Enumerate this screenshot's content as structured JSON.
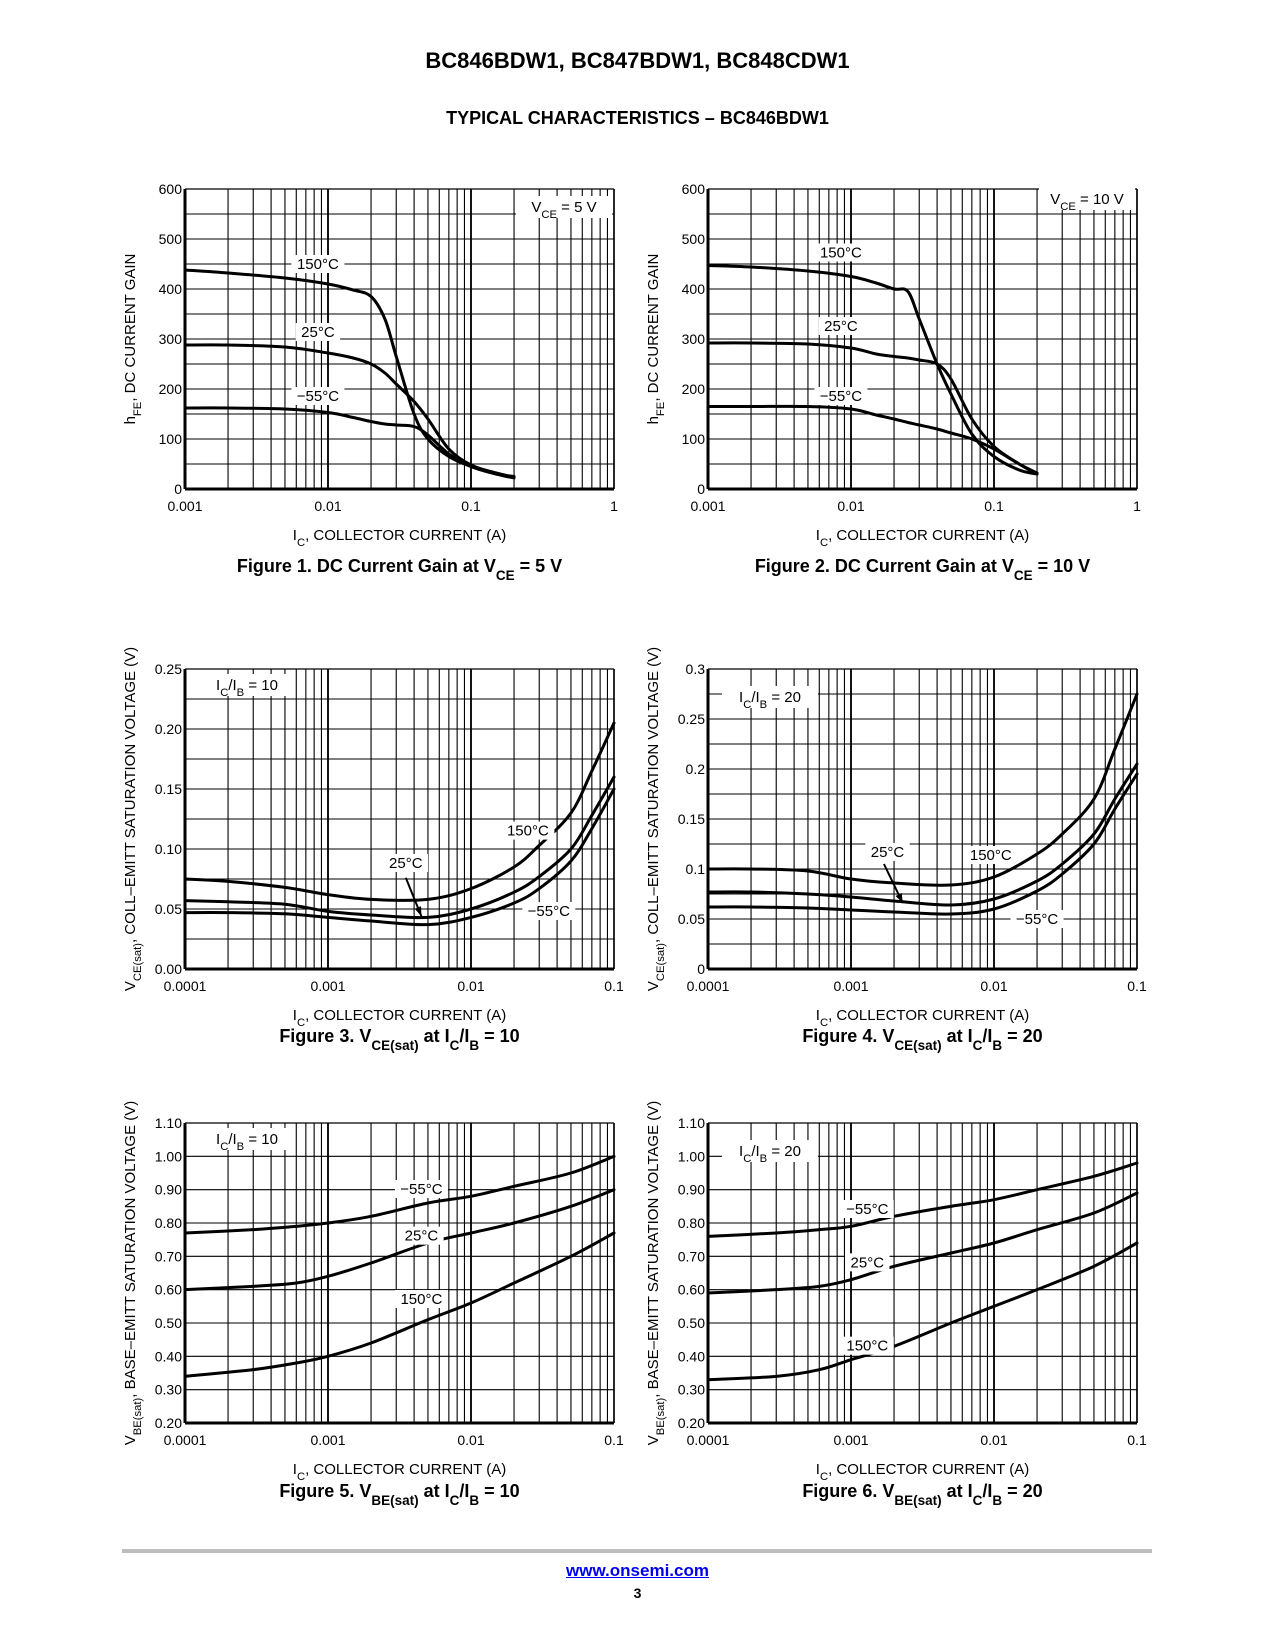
{
  "document": {
    "title": "BC846BDW1, BC847BDW1, BC848CDW1",
    "section": "TYPICAL CHARACTERISTICS – BC846BDW1"
  },
  "footer": {
    "link": "www.onsemi.com",
    "page": "3",
    "link_color": "#0000ee",
    "rule_color": "#bdbdbd"
  },
  "chart_data": [
    {
      "id": "fig1",
      "type": "line",
      "caption": "Figure 1. DC Current Gain at V",
      "caption_sub": "CE",
      "caption_tail": " = 5 V",
      "annotation": "V",
      "annotation_sub": "CE",
      "annotation_tail": " = 5 V",
      "xscale": "log",
      "xlim": [
        0.001,
        1
      ],
      "ylim": [
        0,
        600
      ],
      "xticks": [
        0.001,
        0.01,
        0.1,
        1
      ],
      "xtick_labels": [
        "0.001",
        "0.01",
        "0.1",
        "1"
      ],
      "yticks": [
        0,
        100,
        200,
        300,
        400,
        500,
        600
      ],
      "ytick_labels": [
        "0",
        "100",
        "200",
        "300",
        "400",
        "500",
        "600"
      ],
      "ygrid_minor": 50,
      "xlabel": "I",
      "xlabel_sub": "C",
      "xlabel_tail": ", COLLECTOR CURRENT (A)",
      "ylabel": "h",
      "ylabel_sub": "FE",
      "ylabel_tail": ", DC CURRENT GAIN",
      "series": [
        {
          "name": "150°C",
          "x": [
            0.001,
            0.002,
            0.005,
            0.01,
            0.015,
            0.02,
            0.025,
            0.03,
            0.04,
            0.05,
            0.07,
            0.1,
            0.15,
            0.2
          ],
          "y": [
            438,
            432,
            422,
            410,
            398,
            385,
            340,
            265,
            150,
            100,
            65,
            45,
            30,
            25
          ]
        },
        {
          "name": "25°C",
          "x": [
            0.001,
            0.002,
            0.005,
            0.01,
            0.015,
            0.02,
            0.025,
            0.03,
            0.04,
            0.05,
            0.07,
            0.1,
            0.15,
            0.2
          ],
          "y": [
            288,
            288,
            284,
            272,
            262,
            250,
            232,
            210,
            175,
            140,
            80,
            48,
            32,
            24
          ]
        },
        {
          "name": "−55°C",
          "x": [
            0.001,
            0.002,
            0.005,
            0.01,
            0.015,
            0.02,
            0.025,
            0.03,
            0.04,
            0.05,
            0.07,
            0.1,
            0.15,
            0.2
          ],
          "y": [
            162,
            162,
            160,
            153,
            143,
            135,
            130,
            128,
            125,
            108,
            70,
            45,
            30,
            22
          ]
        }
      ],
      "labels": [
        {
          "text": "150°C",
          "x": 0.0085,
          "y": 442
        },
        {
          "text": "25°C",
          "x": 0.0085,
          "y": 306
        },
        {
          "text": "−55°C",
          "x": 0.0085,
          "y": 178
        }
      ]
    },
    {
      "id": "fig2",
      "type": "line",
      "caption": "Figure 2. DC Current Gain at V",
      "caption_sub": "CE",
      "caption_tail": " = 10 V",
      "annotation": "V",
      "annotation_sub": "CE",
      "annotation_tail": " = 10 V",
      "xscale": "log",
      "xlim": [
        0.001,
        1
      ],
      "ylim": [
        0,
        600
      ],
      "xticks": [
        0.001,
        0.01,
        0.1,
        1
      ],
      "xtick_labels": [
        "0.001",
        "0.01",
        "0.1",
        "1"
      ],
      "yticks": [
        0,
        100,
        200,
        300,
        400,
        500,
        600
      ],
      "ytick_labels": [
        "0",
        "100",
        "200",
        "300",
        "400",
        "500",
        "600"
      ],
      "ygrid_minor": 50,
      "xlabel": "I",
      "xlabel_sub": "C",
      "xlabel_tail": ", COLLECTOR CURRENT (A)",
      "ylabel": "h",
      "ylabel_sub": "FE",
      "ylabel_tail": ", DC CURRENT GAIN",
      "series": [
        {
          "name": "150°C",
          "x": [
            0.001,
            0.002,
            0.005,
            0.01,
            0.015,
            0.02,
            0.025,
            0.03,
            0.04,
            0.05,
            0.07,
            0.1,
            0.15,
            0.2
          ],
          "y": [
            447,
            444,
            436,
            425,
            412,
            400,
            395,
            340,
            250,
            190,
            110,
            65,
            38,
            30
          ]
        },
        {
          "name": "25°C",
          "x": [
            0.001,
            0.002,
            0.005,
            0.01,
            0.015,
            0.02,
            0.025,
            0.03,
            0.04,
            0.05,
            0.07,
            0.1,
            0.15,
            0.2
          ],
          "y": [
            292,
            292,
            290,
            282,
            270,
            265,
            262,
            258,
            250,
            220,
            140,
            85,
            50,
            30
          ]
        },
        {
          "name": "−55°C",
          "x": [
            0.001,
            0.002,
            0.005,
            0.01,
            0.015,
            0.02,
            0.025,
            0.03,
            0.04,
            0.05,
            0.07,
            0.1,
            0.15,
            0.2
          ],
          "y": [
            165,
            165,
            165,
            160,
            148,
            140,
            133,
            128,
            120,
            112,
            100,
            80,
            50,
            32
          ]
        }
      ],
      "labels": [
        {
          "text": "150°C",
          "x": 0.0085,
          "y": 465
        },
        {
          "text": "25°C",
          "x": 0.0085,
          "y": 318
        },
        {
          "text": "−55°C",
          "x": 0.0085,
          "y": 178
        }
      ]
    },
    {
      "id": "fig3",
      "type": "line",
      "caption": "Figure 3. V",
      "caption_sub": "CE(sat)",
      "caption_tail": " at I",
      "caption_sub2": "C",
      "caption_tail2": "/I",
      "caption_sub3": "B",
      "caption_tail3": " = 10",
      "annotation": "I",
      "annotation_sub": "C",
      "annotation_tail": "/I",
      "annotation_sub2": "B",
      "annotation_tail2": " = 10",
      "xscale": "log",
      "xlim": [
        0.0001,
        0.1
      ],
      "ylim": [
        0,
        0.25
      ],
      "xticks": [
        0.0001,
        0.001,
        0.01,
        0.1
      ],
      "xtick_labels": [
        "0.0001",
        "0.001",
        "0.01",
        "0.1"
      ],
      "yticks": [
        0,
        0.05,
        0.1,
        0.15,
        0.2,
        0.25
      ],
      "ytick_labels": [
        "0.00",
        "0.05",
        "0.10",
        "0.15",
        "0.20",
        "0.25"
      ],
      "ygrid_minor": 0.025,
      "xlabel": "I",
      "xlabel_sub": "C",
      "xlabel_tail": ", COLLECTOR CURRENT (A)",
      "ylabel": "V",
      "ylabel_sub": "CE(sat)",
      "ylabel_tail": ", COLL–EMITT SATURATION VOLTAGE (V)",
      "series": [
        {
          "name": "150°C",
          "x": [
            0.0001,
            0.0002,
            0.0005,
            0.001,
            0.002,
            0.005,
            0.01,
            0.02,
            0.03,
            0.05,
            0.07,
            0.1
          ],
          "y": [
            0.075,
            0.073,
            0.068,
            0.062,
            0.058,
            0.058,
            0.067,
            0.085,
            0.103,
            0.13,
            0.165,
            0.205
          ]
        },
        {
          "name": "25°C",
          "x": [
            0.0001,
            0.0002,
            0.0005,
            0.001,
            0.002,
            0.005,
            0.01,
            0.02,
            0.03,
            0.05,
            0.07,
            0.1
          ],
          "y": [
            0.057,
            0.056,
            0.054,
            0.048,
            0.045,
            0.043,
            0.05,
            0.064,
            0.077,
            0.1,
            0.128,
            0.16
          ]
        },
        {
          "name": "−55°C",
          "x": [
            0.0001,
            0.0002,
            0.0005,
            0.001,
            0.002,
            0.005,
            0.01,
            0.02,
            0.03,
            0.05,
            0.07,
            0.1
          ],
          "y": [
            0.047,
            0.047,
            0.046,
            0.043,
            0.04,
            0.037,
            0.043,
            0.055,
            0.067,
            0.09,
            0.117,
            0.15
          ]
        }
      ],
      "labels": [
        {
          "text": "150°C",
          "x": 0.025,
          "y": 0.112
        },
        {
          "text": "25°C",
          "x": 0.0035,
          "y": 0.085
        },
        {
          "text": "−55°C",
          "x": 0.035,
          "y": 0.045
        }
      ],
      "arrow": {
        "from": [
          0.0035,
          0.076
        ],
        "to": [
          0.0045,
          0.044
        ]
      }
    },
    {
      "id": "fig4",
      "type": "line",
      "caption": "Figure 4. V",
      "caption_sub": "CE(sat)",
      "caption_tail": " at I",
      "caption_sub2": "C",
      "caption_tail2": "/I",
      "caption_sub3": "B",
      "caption_tail3": " = 20",
      "annotation": "I",
      "annotation_sub": "C",
      "annotation_tail": "/I",
      "annotation_sub2": "B",
      "annotation_tail2": " = 20",
      "xscale": "log",
      "xlim": [
        0.0001,
        0.1
      ],
      "ylim": [
        0,
        0.3
      ],
      "xticks": [
        0.0001,
        0.001,
        0.01,
        0.1
      ],
      "xtick_labels": [
        "0.0001",
        "0.001",
        "0.01",
        "0.1"
      ],
      "yticks": [
        0,
        0.05,
        0.1,
        0.15,
        0.2,
        0.25,
        0.3
      ],
      "ytick_labels": [
        "0",
        "0.05",
        "0.1",
        "0.15",
        "0.2",
        "0.25",
        "0.3"
      ],
      "ygrid_minor": 0.025,
      "xlabel": "I",
      "xlabel_sub": "C",
      "xlabel_tail": ", COLLECTOR CURRENT (A)",
      "ylabel": "V",
      "ylabel_sub": "CE(sat)",
      "ylabel_tail": ", COLL–EMITT SATURATION VOLTAGE (V)",
      "series": [
        {
          "name": "150°C",
          "x": [
            0.0001,
            0.0002,
            0.0005,
            0.001,
            0.002,
            0.005,
            0.01,
            0.02,
            0.03,
            0.05,
            0.07,
            0.1
          ],
          "y": [
            0.1,
            0.1,
            0.098,
            0.09,
            0.086,
            0.084,
            0.092,
            0.115,
            0.135,
            0.17,
            0.22,
            0.275
          ]
        },
        {
          "name": "25°C",
          "x": [
            0.0001,
            0.0002,
            0.0005,
            0.001,
            0.002,
            0.005,
            0.01,
            0.02,
            0.03,
            0.05,
            0.07,
            0.1
          ],
          "y": [
            0.077,
            0.077,
            0.075,
            0.072,
            0.068,
            0.064,
            0.07,
            0.088,
            0.105,
            0.135,
            0.17,
            0.205
          ]
        },
        {
          "name": "−55°C",
          "x": [
            0.0001,
            0.0002,
            0.0005,
            0.001,
            0.002,
            0.005,
            0.01,
            0.02,
            0.03,
            0.05,
            0.07,
            0.1
          ],
          "y": [
            0.062,
            0.062,
            0.061,
            0.059,
            0.057,
            0.055,
            0.06,
            0.078,
            0.095,
            0.125,
            0.16,
            0.195
          ]
        }
      ],
      "labels": [
        {
          "text": "150°C",
          "x": 0.0095,
          "y": 0.11
        },
        {
          "text": "25°C",
          "x": 0.0018,
          "y": 0.113
        },
        {
          "text": "−55°C",
          "x": 0.02,
          "y": 0.046
        }
      ],
      "arrow": {
        "from": [
          0.0017,
          0.105
        ],
        "to": [
          0.0023,
          0.066
        ]
      }
    },
    {
      "id": "fig5",
      "type": "line",
      "caption": "Figure 5. V",
      "caption_sub": "BE(sat)",
      "caption_tail": " at I",
      "caption_sub2": "C",
      "caption_tail2": "/I",
      "caption_sub3": "B",
      "caption_tail3": " = 10",
      "annotation": "I",
      "annotation_sub": "C",
      "annotation_tail": "/I",
      "annotation_sub2": "B",
      "annotation_tail2": " = 10",
      "xscale": "log",
      "xlim": [
        0.0001,
        0.1
      ],
      "ylim": [
        0.2,
        1.1
      ],
      "xticks": [
        0.0001,
        0.001,
        0.01,
        0.1
      ],
      "xtick_labels": [
        "0.0001",
        "0.001",
        "0.01",
        "0.1"
      ],
      "yticks": [
        0.2,
        0.3,
        0.4,
        0.5,
        0.6,
        0.7,
        0.8,
        0.9,
        1.0,
        1.1
      ],
      "ytick_labels": [
        "0.20",
        "0.30",
        "0.40",
        "0.50",
        "0.60",
        "0.70",
        "0.80",
        "0.90",
        "1.00",
        "1.10"
      ],
      "ygrid_minor": null,
      "xlabel": "I",
      "xlabel_sub": "C",
      "xlabel_tail": ", COLLECTOR CURRENT (A)",
      "ylabel": "V",
      "ylabel_sub": "BE(sat)",
      "ylabel_tail": ", BASE–EMITT SATURATION VOLTAGE (V)",
      "series": [
        {
          "name": "−55°C",
          "x": [
            0.0001,
            0.0003,
            0.0006,
            0.001,
            0.002,
            0.005,
            0.01,
            0.02,
            0.05,
            0.1
          ],
          "y": [
            0.77,
            0.78,
            0.79,
            0.8,
            0.82,
            0.86,
            0.88,
            0.91,
            0.95,
            1.0
          ]
        },
        {
          "name": "25°C",
          "x": [
            0.0001,
            0.0003,
            0.0006,
            0.001,
            0.002,
            0.005,
            0.01,
            0.02,
            0.05,
            0.1
          ],
          "y": [
            0.6,
            0.61,
            0.62,
            0.64,
            0.68,
            0.74,
            0.77,
            0.8,
            0.85,
            0.9
          ]
        },
        {
          "name": "150°C",
          "x": [
            0.0001,
            0.0003,
            0.0006,
            0.001,
            0.002,
            0.005,
            0.01,
            0.02,
            0.05,
            0.1
          ],
          "y": [
            0.34,
            0.36,
            0.38,
            0.4,
            0.44,
            0.51,
            0.56,
            0.62,
            0.7,
            0.77
          ]
        }
      ],
      "labels": [
        {
          "text": "−55°C",
          "x": 0.0045,
          "y": 0.89
        },
        {
          "text": "25°C",
          "x": 0.0045,
          "y": 0.75
        },
        {
          "text": "150°C",
          "x": 0.0045,
          "y": 0.56
        }
      ]
    },
    {
      "id": "fig6",
      "type": "line",
      "caption": "Figure 6. V",
      "caption_sub": "BE(sat)",
      "caption_tail": " at I",
      "caption_sub2": "C",
      "caption_tail2": "/I",
      "caption_sub3": "B",
      "caption_tail3": " = 20",
      "annotation": "I",
      "annotation_sub": "C",
      "annotation_tail": "/I",
      "annotation_sub2": "B",
      "annotation_tail2": " = 20",
      "xscale": "log",
      "xlim": [
        0.0001,
        0.1
      ],
      "ylim": [
        0.2,
        1.1
      ],
      "xticks": [
        0.0001,
        0.001,
        0.01,
        0.1
      ],
      "xtick_labels": [
        "0.0001",
        "0.001",
        "0.01",
        "0.1"
      ],
      "yticks": [
        0.2,
        0.3,
        0.4,
        0.5,
        0.6,
        0.7,
        0.8,
        0.9,
        1.0,
        1.1
      ],
      "ytick_labels": [
        "0.20",
        "0.30",
        "0.40",
        "0.50",
        "0.60",
        "0.70",
        "0.80",
        "0.90",
        "1.00",
        "1.10"
      ],
      "ygrid_minor": null,
      "xlabel": "I",
      "xlabel_sub": "C",
      "xlabel_tail": ", COLLECTOR CURRENT (A)",
      "ylabel": "V",
      "ylabel_sub": "BE(sat)",
      "ylabel_tail": ", BASE–EMITT SATURATION VOLTAGE (V)",
      "series": [
        {
          "name": "−55°C",
          "x": [
            0.0001,
            0.0003,
            0.0006,
            0.001,
            0.002,
            0.005,
            0.01,
            0.02,
            0.05,
            0.1
          ],
          "y": [
            0.76,
            0.77,
            0.78,
            0.79,
            0.82,
            0.85,
            0.87,
            0.9,
            0.94,
            0.98
          ]
        },
        {
          "name": "25°C",
          "x": [
            0.0001,
            0.0003,
            0.0006,
            0.001,
            0.002,
            0.005,
            0.01,
            0.02,
            0.05,
            0.1
          ],
          "y": [
            0.59,
            0.6,
            0.61,
            0.63,
            0.67,
            0.71,
            0.74,
            0.78,
            0.83,
            0.89
          ]
        },
        {
          "name": "150°C",
          "x": [
            0.0001,
            0.0003,
            0.0006,
            0.001,
            0.002,
            0.005,
            0.01,
            0.02,
            0.05,
            0.1
          ],
          "y": [
            0.33,
            0.34,
            0.36,
            0.39,
            0.43,
            0.5,
            0.55,
            0.6,
            0.67,
            0.74
          ]
        }
      ],
      "labels": [
        {
          "text": "−55°C",
          "x": 0.0013,
          "y": 0.83
        },
        {
          "text": "25°C",
          "x": 0.0013,
          "y": 0.67
        },
        {
          "text": "150°C",
          "x": 0.0013,
          "y": 0.42
        }
      ]
    }
  ]
}
